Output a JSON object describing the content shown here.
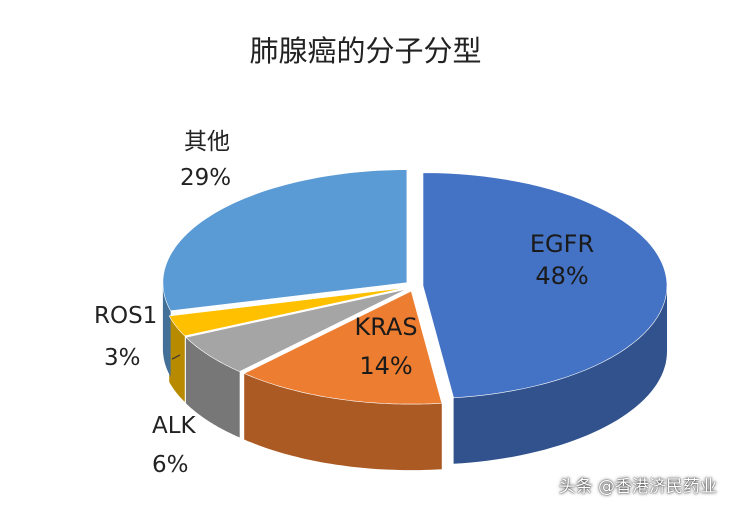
{
  "chart_data": {
    "type": "pie",
    "title": "肺腺癌的分子分型",
    "categories": [
      "EGFR",
      "KRAS",
      "ALK",
      "ROS1",
      "其他"
    ],
    "values": [
      48,
      14,
      6,
      3,
      29
    ],
    "value_labels": [
      "48%",
      "14%",
      "6%",
      "3%",
      "29%"
    ],
    "colors": [
      "#4472c4",
      "#ed7d31",
      "#a5a5a5",
      "#ffc000",
      "#5b9bd5"
    ],
    "style": "3d-exploded"
  },
  "watermark": "头条 @香港济民药业"
}
